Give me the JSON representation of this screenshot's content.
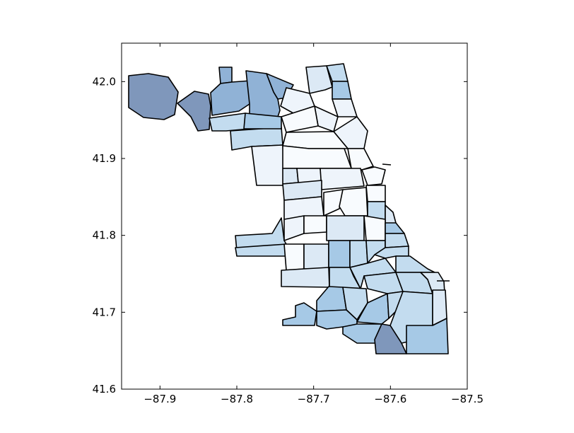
{
  "chart_data": {
    "type": "map",
    "title": "",
    "xlabel": "",
    "ylabel": "",
    "xlim": [
      -87.95,
      -87.5
    ],
    "ylim": [
      41.6,
      42.05
    ],
    "x_ticks": [
      -87.9,
      -87.8,
      -87.7,
      -87.6,
      -87.5
    ],
    "y_ticks": [
      41.6,
      41.7,
      41.8,
      41.9,
      42.0
    ],
    "x_tick_labels": [
      "−87.9",
      "−87.8",
      "−87.7",
      "−87.6",
      "−87.5"
    ],
    "y_tick_labels": [
      "41.6",
      "41.7",
      "41.8",
      "41.9",
      "42.0"
    ],
    "grid": false,
    "colors": {
      "darkest": "#7f97bb",
      "dark": "#90b2d6",
      "mid": "#a6c9e6",
      "light": "#c3dcef",
      "lighter": "#dce9f5",
      "lightest": "#eef4fb",
      "white": "#f8fbfe",
      "outline": "#000000",
      "background": "#ffffff"
    }
  }
}
